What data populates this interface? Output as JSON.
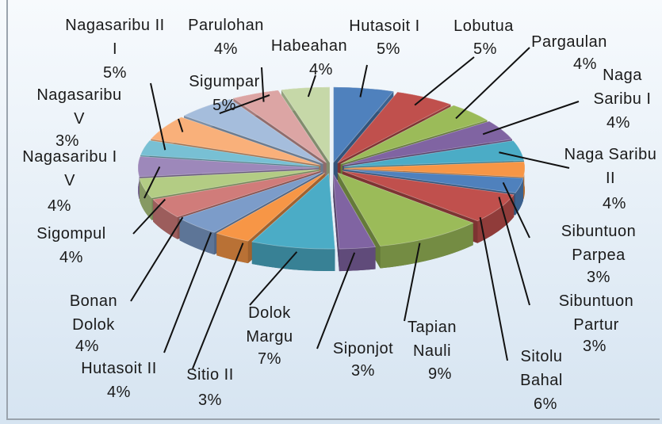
{
  "chart_data": {
    "type": "pie",
    "categories": [
      "Hutasoit I",
      "Lobutua",
      "Pargaulan",
      "Naga Saribu I",
      "Naga Saribu II",
      "Sibuntuon Parpea",
      "Sibuntuon Partur",
      "Sitolu Bahal",
      "Tapian Nauli",
      "Siponjot",
      "Dolok Margu",
      "Sitio II",
      "Hutasoit II",
      "Bonan Dolok",
      "Sigompul",
      "Nagasaribu IV",
      "Nagasaribu V",
      "Nagasaribu III",
      "Sigumpar",
      "Parulohan",
      "Habeahan"
    ],
    "values": [
      5,
      5,
      4,
      4,
      4,
      3,
      3,
      6,
      9,
      3,
      7,
      3,
      4,
      4,
      4,
      4,
      3,
      5,
      5,
      4,
      4
    ],
    "value_labels": [
      "5%",
      "5%",
      "4%",
      "4%",
      "4%",
      "3%",
      "3%",
      "6%",
      "9%",
      "3%",
      "7%",
      "3%",
      "4%",
      "4%",
      "4%",
      "4%",
      "3%",
      "5%",
      "5%",
      "4%",
      "4%"
    ],
    "colors": [
      "#4f81bd",
      "#c0504d",
      "#9bbb59",
      "#8064a2",
      "#4bacc6",
      "#f79646",
      "#4f81bd",
      "#c0504d",
      "#9bbb59",
      "#8064a2",
      "#4bacc6",
      "#f79646",
      "#7c9cc9",
      "#d07c7a",
      "#b3cc84",
      "#9d88ba",
      "#78c0d4",
      "#f9b07a",
      "#a5bddc",
      "#dca5a4",
      "#c6d8a8"
    ]
  }
}
